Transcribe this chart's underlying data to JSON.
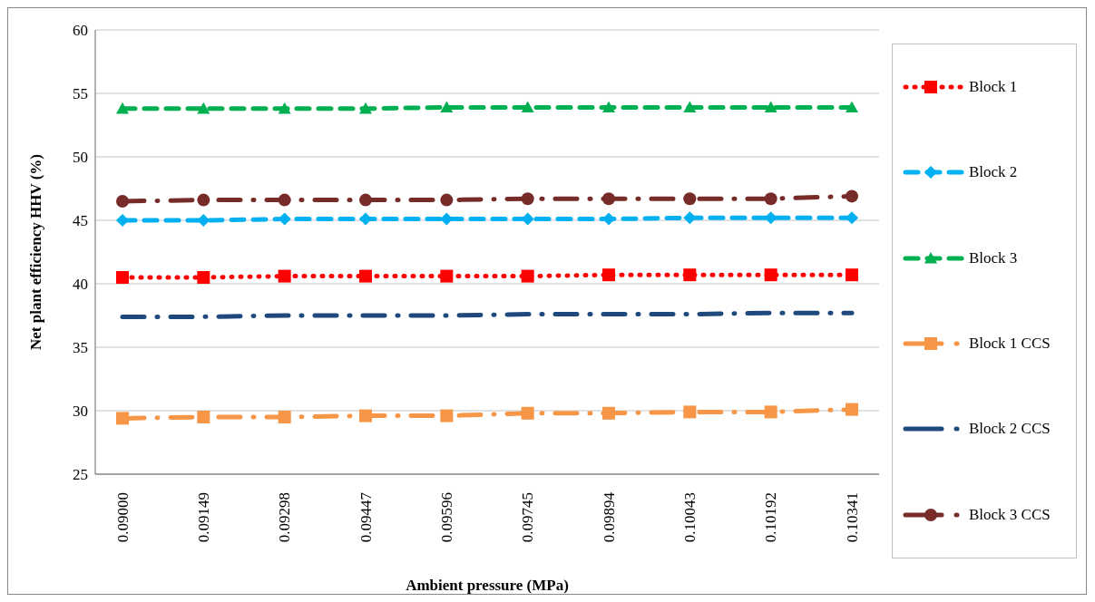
{
  "chart_data": {
    "type": "line",
    "xlabel": "Ambient pressure (MPa)",
    "ylabel": "Net plant efficiency HHV (%)",
    "categories": [
      "0.09000",
      "0.09149",
      "0.09298",
      "0.09447",
      "0.09596",
      "0.09745",
      "0.09894",
      "0.10043",
      "0.10192",
      "0.10341"
    ],
    "ylim": [
      25,
      60
    ],
    "yticks": [
      25,
      30,
      35,
      40,
      45,
      50,
      55,
      60
    ],
    "grid": "y",
    "legend": "right",
    "series": [
      {
        "name": "Block 1",
        "color": "#ff0000",
        "marker": "square",
        "line_style": "dotted",
        "values": [
          40.5,
          40.5,
          40.6,
          40.6,
          40.6,
          40.6,
          40.7,
          40.7,
          40.7,
          40.7
        ]
      },
      {
        "name": "Block 2",
        "color": "#00b0f0",
        "marker": "diamond",
        "line_style": "dashed",
        "values": [
          45.0,
          45.0,
          45.1,
          45.1,
          45.1,
          45.1,
          45.1,
          45.2,
          45.2,
          45.2
        ]
      },
      {
        "name": "Block 3",
        "color": "#00b050",
        "marker": "triangle",
        "line_style": "dashed",
        "values": [
          53.8,
          53.8,
          53.8,
          53.8,
          53.9,
          53.9,
          53.9,
          53.9,
          53.9,
          53.9
        ]
      },
      {
        "name": "Block 1 CCS",
        "color": "#f79646",
        "marker": "square",
        "line_style": "dashed",
        "values": [
          29.4,
          29.5,
          29.5,
          29.6,
          29.6,
          29.8,
          29.8,
          29.9,
          29.9,
          30.1
        ]
      },
      {
        "name": "Block 2 CCS",
        "color": "#1f497d",
        "marker": "none",
        "line_style": "dashed",
        "values": [
          37.4,
          37.4,
          37.5,
          37.5,
          37.5,
          37.6,
          37.6,
          37.6,
          37.7,
          37.7
        ]
      },
      {
        "name": "Block 3 CCS",
        "color": "#772c2a",
        "marker": "circle",
        "line_style": "dashed",
        "values": [
          46.5,
          46.6,
          46.6,
          46.6,
          46.6,
          46.7,
          46.7,
          46.7,
          46.7,
          46.9
        ]
      }
    ]
  }
}
